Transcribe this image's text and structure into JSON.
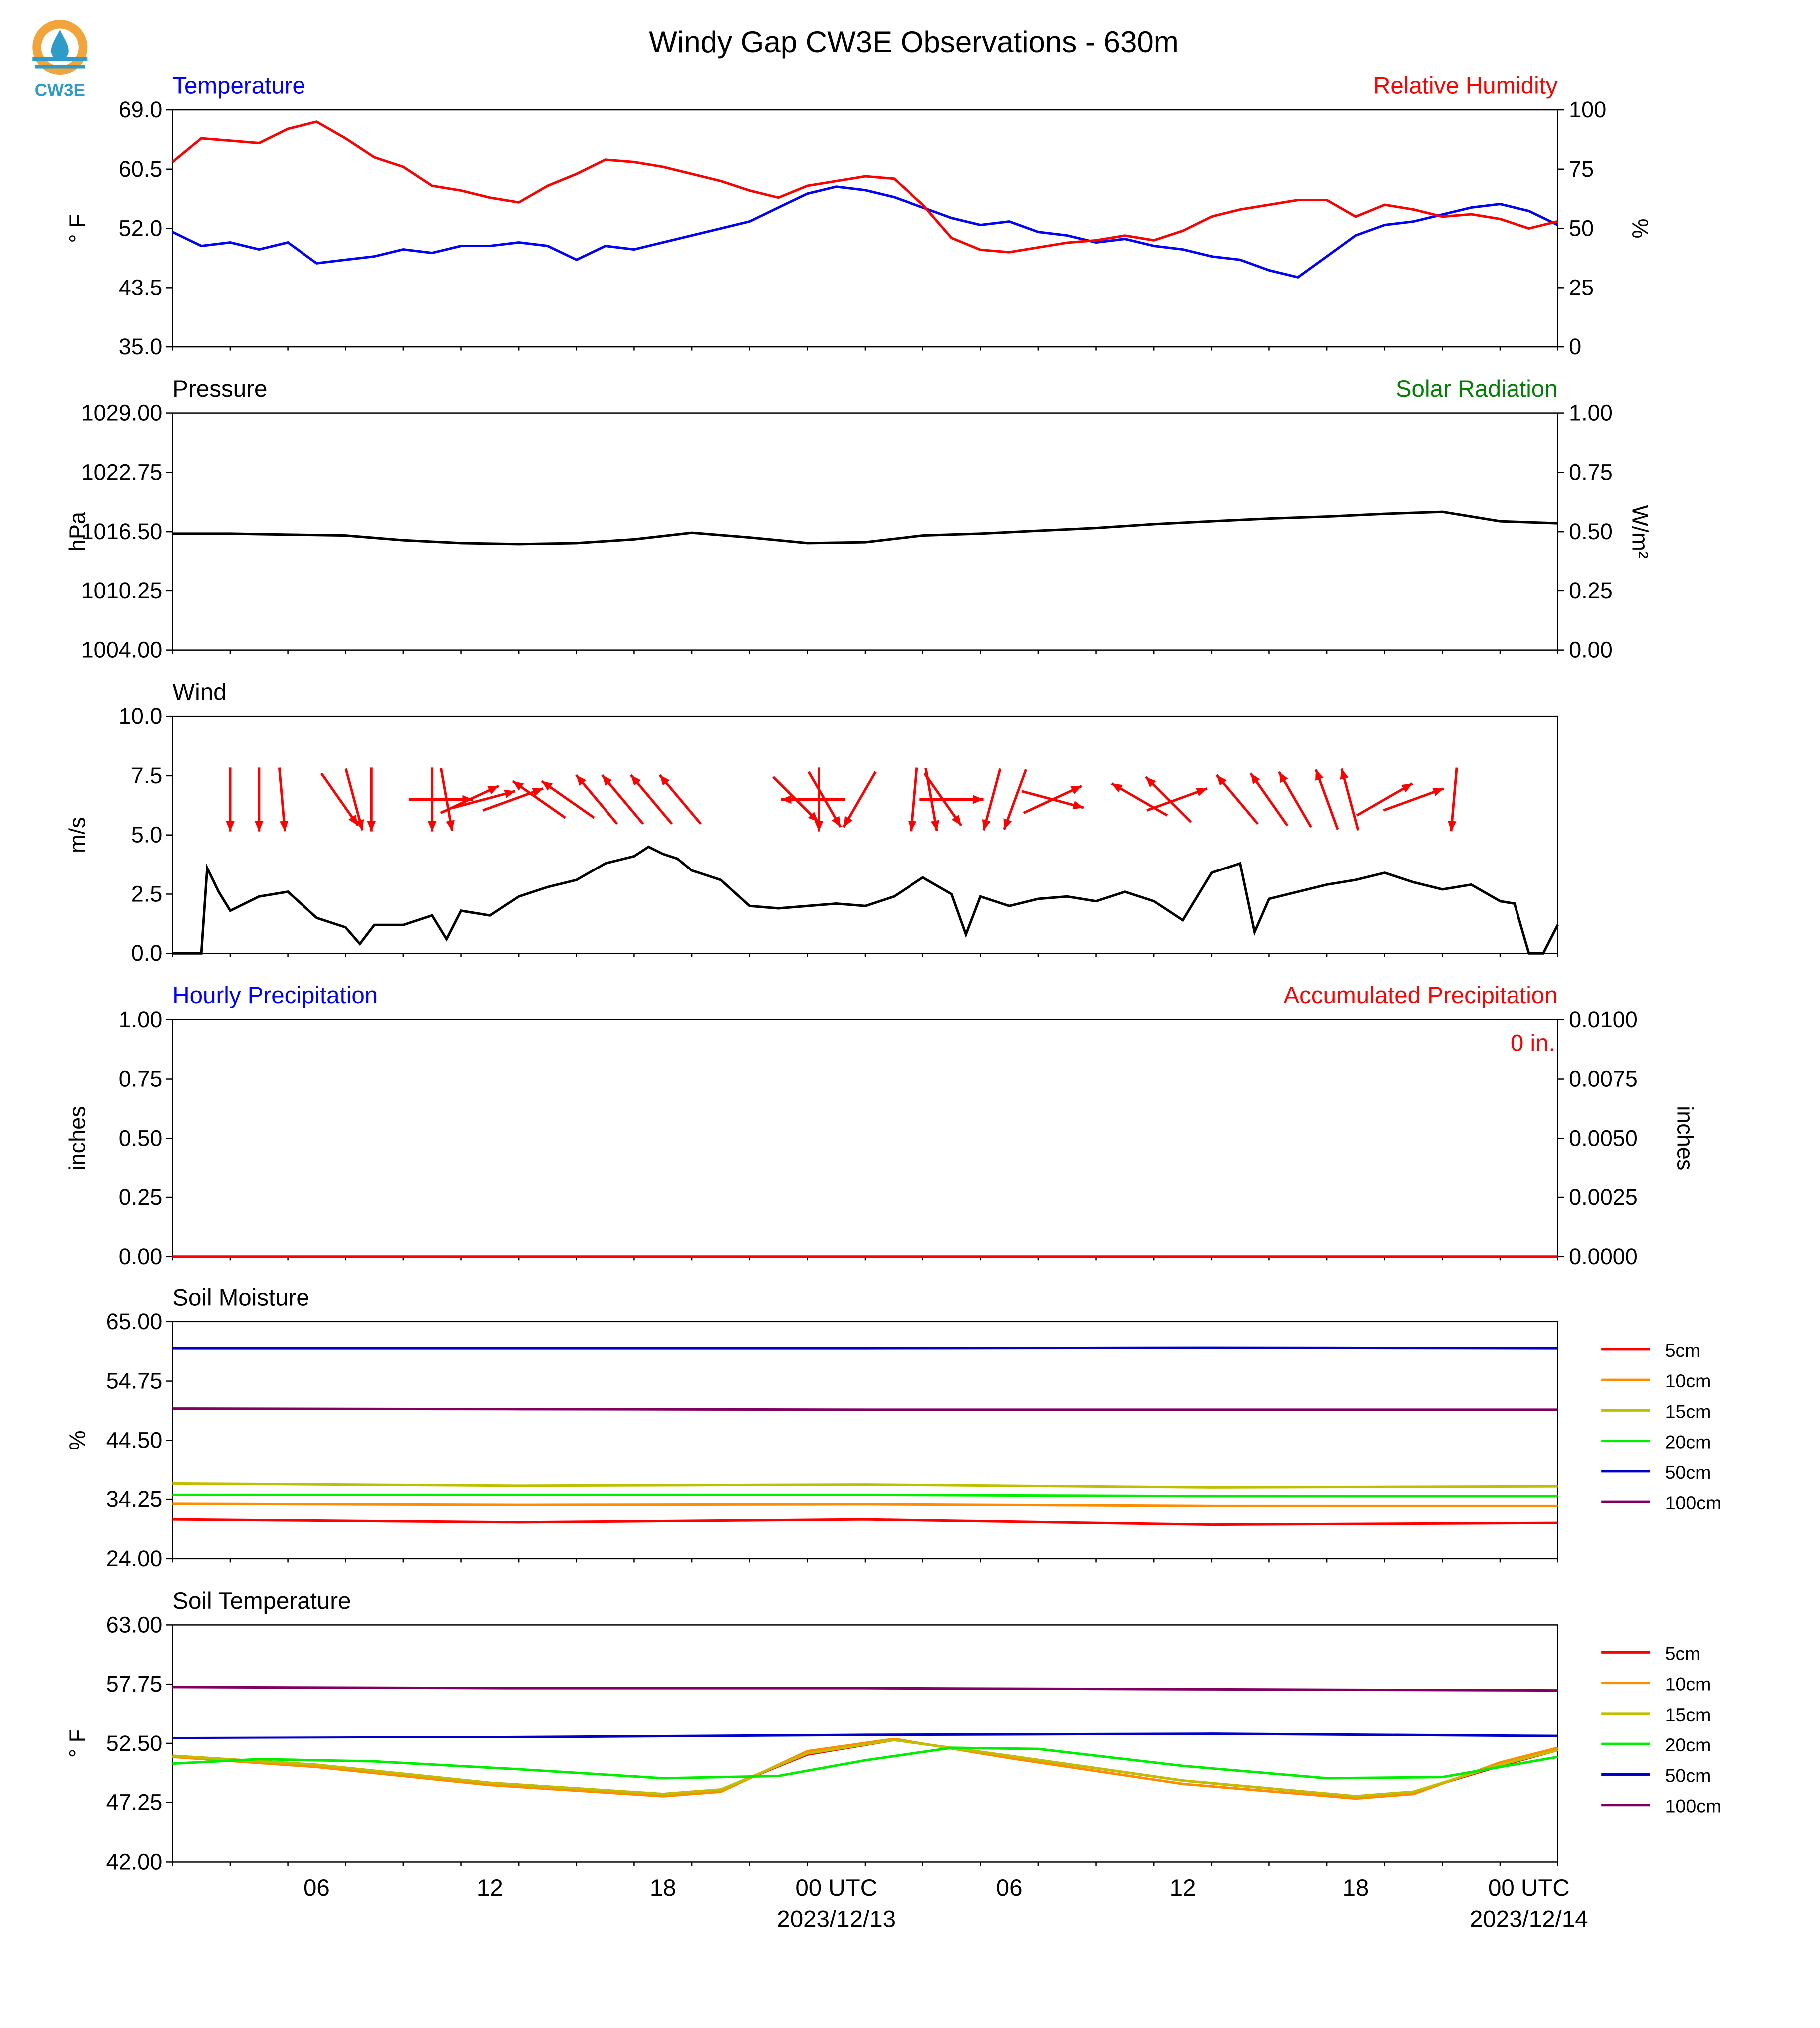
{
  "title": "Windy Gap CW3E Observations - 630m",
  "logo": {
    "text": "CW3E",
    "colors": {
      "ring": "#f2a33a",
      "drop": "#2e9bc9",
      "text": "#2e9bc9"
    }
  },
  "time_axis": {
    "start": "2023-12-12T01:00Z",
    "end": "2023-12-14T01:00Z",
    "tick_labels": [
      {
        "time": "2023-12-12T06:00Z",
        "label": "06"
      },
      {
        "time": "2023-12-12T12:00Z",
        "label": "12"
      },
      {
        "time": "2023-12-12T18:00Z",
        "label": "18"
      },
      {
        "time": "2023-12-13T00:00Z",
        "label": "00 UTC",
        "date": "2023/12/13"
      },
      {
        "time": "2023-12-13T06:00Z",
        "label": "06"
      },
      {
        "time": "2023-12-13T12:00Z",
        "label": "12"
      },
      {
        "time": "2023-12-13T18:00Z",
        "label": "18"
      },
      {
        "time": "2023-12-14T00:00Z",
        "label": "00 UTC",
        "date": "2023/12/14"
      }
    ]
  },
  "chart_data": [
    {
      "type": "line",
      "id": "temperature",
      "left_title": "Temperature",
      "left_title_color": "#0000ff",
      "right_title": "Relative Humidity",
      "right_title_color": "#ff0000",
      "ylabel": "° F",
      "ylim": [
        35.0,
        69.0
      ],
      "yticks": [
        "69.0",
        "60.5",
        "52.0",
        "43.5",
        "35.0"
      ],
      "y2label": "%",
      "y2lim": [
        0,
        100
      ],
      "y2ticks": [
        "100",
        "75",
        "50",
        "25",
        "0"
      ],
      "series": [
        {
          "color": "#0000ff",
          "axis": "left",
          "x": [
            1,
            2,
            3,
            4,
            5,
            6,
            7,
            8,
            9,
            10,
            11,
            12,
            13,
            14,
            15,
            16,
            17,
            18,
            19,
            20,
            21,
            22,
            23,
            24,
            25,
            26,
            27,
            28,
            29,
            30,
            31,
            32,
            33,
            34,
            35,
            36,
            37,
            38,
            39,
            40,
            41,
            42,
            43,
            44,
            45,
            46,
            47,
            48,
            49
          ],
          "y": [
            51.5,
            49.5,
            50.0,
            49.0,
            50.0,
            47.0,
            47.5,
            48.0,
            49.0,
            48.5,
            49.5,
            49.5,
            50.0,
            49.5,
            47.5,
            49.5,
            49.0,
            50.0,
            51.0,
            52.0,
            53.0,
            55.0,
            57.0,
            58.0,
            57.5,
            56.5,
            55.0,
            53.5,
            52.5,
            53.0,
            51.5,
            51.0,
            50.0,
            50.5,
            49.5,
            49.0,
            48.0,
            47.5,
            46.0,
            45.0,
            48.0,
            51.0,
            52.5,
            53.0,
            54.0,
            55.0,
            55.5,
            54.5,
            52.5
          ]
        },
        {
          "color": "#ff0000",
          "axis": "right",
          "x": [
            1,
            2,
            3,
            4,
            5,
            6,
            7,
            8,
            9,
            10,
            11,
            12,
            13,
            14,
            15,
            16,
            17,
            18,
            19,
            20,
            21,
            22,
            23,
            24,
            25,
            26,
            27,
            28,
            29,
            30,
            31,
            32,
            33,
            34,
            35,
            36,
            37,
            38,
            39,
            40,
            41,
            42,
            43,
            44,
            45,
            46,
            47,
            48,
            49
          ],
          "y": [
            78,
            88,
            87,
            86,
            92,
            95,
            88,
            80,
            76,
            68,
            66,
            63,
            61,
            68,
            73,
            79,
            78,
            76,
            73,
            70,
            66,
            63,
            68,
            70,
            72,
            71,
            60,
            46,
            41,
            40,
            42,
            44,
            45,
            47,
            45,
            49,
            55,
            58,
            60,
            62,
            62,
            55,
            60,
            58,
            55,
            56,
            54,
            50,
            53
          ]
        }
      ]
    },
    {
      "type": "line",
      "id": "pressure",
      "left_title": "Pressure",
      "left_title_color": "#000000",
      "right_title": "Solar Radiation",
      "right_title_color": "#008000",
      "ylabel": "hPa",
      "ylim": [
        1004.0,
        1029.0
      ],
      "yticks": [
        "1029.00",
        "1022.75",
        "1016.50",
        "1010.25",
        "1004.00"
      ],
      "y2label": "W/m²",
      "y2lim": [
        0.0,
        1.0
      ],
      "y2ticks": [
        "1.00",
        "0.75",
        "0.50",
        "0.25",
        "0.00"
      ],
      "series": [
        {
          "color": "#000000",
          "axis": "left",
          "x": [
            1,
            3,
            5,
            7,
            9,
            11,
            13,
            15,
            17,
            19,
            21,
            23,
            25,
            27,
            29,
            31,
            33,
            35,
            37,
            39,
            41,
            43,
            45,
            47,
            49
          ],
          "y": [
            1016.3,
            1016.3,
            1016.2,
            1016.1,
            1015.6,
            1015.3,
            1015.2,
            1015.3,
            1015.7,
            1016.4,
            1015.9,
            1015.3,
            1015.4,
            1016.1,
            1016.3,
            1016.6,
            1016.9,
            1017.3,
            1017.6,
            1017.9,
            1018.1,
            1018.4,
            1018.6,
            1017.6,
            1017.4
          ]
        }
      ]
    },
    {
      "type": "line",
      "id": "wind",
      "left_title": "Wind",
      "left_title_color": "#000000",
      "ylabel": "m/s",
      "ylim": [
        0.0,
        10.0
      ],
      "yticks": [
        "10.0",
        "7.5",
        "5.0",
        "2.5",
        "0.0"
      ],
      "series": [
        {
          "color": "#000000",
          "axis": "left",
          "x": [
            1,
            1.9,
            2,
            2.2,
            2.6,
            3,
            4,
            5,
            6,
            7,
            7.5,
            8,
            9,
            10,
            10.5,
            11,
            12,
            13,
            14,
            15,
            16,
            17,
            17.5,
            18,
            18.5,
            19,
            20,
            21,
            22,
            23,
            24,
            25,
            26,
            27,
            28,
            28.5,
            29,
            30,
            31,
            32,
            33,
            34,
            35,
            36,
            37,
            38,
            38.5,
            39,
            40,
            41,
            42,
            43,
            44,
            45,
            46,
            47,
            47.5,
            48,
            48.5,
            49
          ],
          "y": [
            0,
            0,
            0,
            3.6,
            2.6,
            1.8,
            2.4,
            2.6,
            1.5,
            1.1,
            0.4,
            1.2,
            1.2,
            1.6,
            0.6,
            1.8,
            1.6,
            2.4,
            2.8,
            3.1,
            3.8,
            4.1,
            4.5,
            4.2,
            4.0,
            3.5,
            3.1,
            2.0,
            1.9,
            2.0,
            2.1,
            2.0,
            2.4,
            3.2,
            2.5,
            0.8,
            2.4,
            2.0,
            2.3,
            2.4,
            2.2,
            2.6,
            2.2,
            1.4,
            3.4,
            3.8,
            0.9,
            2.3,
            2.6,
            2.9,
            3.1,
            3.4,
            3.0,
            2.7,
            2.9,
            2.2,
            2.1,
            0.0,
            0.0,
            1.2
          ]
        }
      ],
      "arrows": {
        "color": "#ff0000",
        "length_ms": 2.0,
        "items": [
          {
            "t": 3.0,
            "dir": 0
          },
          {
            "t": 4.0,
            "dir": 0
          },
          {
            "t": 4.8,
            "dir": 355
          },
          {
            "t": 6.8,
            "dir": 325
          },
          {
            "t": 7.3,
            "dir": 345
          },
          {
            "t": 7.9,
            "dir": 0
          },
          {
            "t": 10.0,
            "dir": 0
          },
          {
            "t": 10.5,
            "dir": 350
          },
          {
            "t": 10.3,
            "dir": 270
          },
          {
            "t": 11.3,
            "dir": 245
          },
          {
            "t": 11.8,
            "dir": 255
          },
          {
            "t": 12.8,
            "dir": 250
          },
          {
            "t": 13.7,
            "dir": 125
          },
          {
            "t": 14.7,
            "dir": 125
          },
          {
            "t": 15.7,
            "dir": 140
          },
          {
            "t": 16.6,
            "dir": 140
          },
          {
            "t": 17.6,
            "dir": 140
          },
          {
            "t": 18.6,
            "dir": 140
          },
          {
            "t": 22.6,
            "dir": 315
          },
          {
            "t": 23.6,
            "dir": 330
          },
          {
            "t": 23.4,
            "dir": 0
          },
          {
            "t": 23.2,
            "dir": 90
          },
          {
            "t": 24.8,
            "dir": 30
          },
          {
            "t": 26.7,
            "dir": 5
          },
          {
            "t": 27.3,
            "dir": 350
          },
          {
            "t": 27.7,
            "dir": 325
          },
          {
            "t": 28.0,
            "dir": 270
          },
          {
            "t": 29.4,
            "dir": 15
          },
          {
            "t": 30.2,
            "dir": 20
          },
          {
            "t": 31.5,
            "dir": 285
          },
          {
            "t": 31.5,
            "dir": 245
          },
          {
            "t": 34.5,
            "dir": 120
          },
          {
            "t": 35.5,
            "dir": 135
          },
          {
            "t": 35.8,
            "dir": 250
          },
          {
            "t": 37.9,
            "dir": 140
          },
          {
            "t": 39.0,
            "dir": 145
          },
          {
            "t": 39.9,
            "dir": 150
          },
          {
            "t": 41.0,
            "dir": 160
          },
          {
            "t": 41.8,
            "dir": 165
          },
          {
            "t": 43.0,
            "dir": 240
          },
          {
            "t": 44.0,
            "dir": 250
          },
          {
            "t": 45.4,
            "dir": 5
          }
        ]
      }
    },
    {
      "type": "line",
      "id": "precipitation",
      "left_title": "Hourly Precipitation",
      "left_title_color": "#0000ff",
      "right_title": "Accumulated Precipitation",
      "right_title_color": "#ff0000",
      "annotation": "0 in.",
      "annotation_color": "#ff0000",
      "ylabel": "inches",
      "ylim": [
        0.0,
        1.0
      ],
      "yticks": [
        "1.00",
        "0.75",
        "0.50",
        "0.25",
        "0.00"
      ],
      "y2label": "inches",
      "y2lim": [
        0.0,
        0.01
      ],
      "y2ticks": [
        "0.0100",
        "0.0075",
        "0.0050",
        "0.0025",
        "0.0000"
      ],
      "series": [
        {
          "color": "#ff0000",
          "axis": "right",
          "x": [
            1,
            49
          ],
          "y": [
            0,
            0
          ]
        }
      ]
    },
    {
      "type": "line",
      "id": "soil_moisture",
      "left_title": "Soil Moisture",
      "left_title_color": "#000000",
      "ylabel": "%",
      "ylim": [
        24.0,
        65.0
      ],
      "yticks": [
        "65.00",
        "54.75",
        "44.50",
        "34.25",
        "24.00"
      ],
      "series": [
        {
          "name": "5cm",
          "color": "#ff0000",
          "x": [
            1,
            13,
            25,
            37,
            49
          ],
          "y": [
            30.8,
            30.3,
            30.8,
            29.9,
            30.2
          ]
        },
        {
          "name": "10cm",
          "color": "#ff8c00",
          "x": [
            1,
            13,
            25,
            37,
            49
          ],
          "y": [
            33.5,
            33.3,
            33.4,
            33.1,
            33.1
          ]
        },
        {
          "name": "15cm",
          "color": "#bfbf00",
          "x": [
            1,
            13,
            25,
            37,
            49
          ],
          "y": [
            37.0,
            36.6,
            36.8,
            36.3,
            36.5
          ]
        },
        {
          "name": "20cm",
          "color": "#00ee00",
          "x": [
            1,
            13,
            25,
            37,
            49
          ],
          "y": [
            35.0,
            35.0,
            35.0,
            34.8,
            34.8
          ]
        },
        {
          "name": "50cm",
          "color": "#0000cc",
          "x": [
            1,
            13,
            25,
            37,
            49
          ],
          "y": [
            60.4,
            60.4,
            60.4,
            60.5,
            60.4
          ]
        },
        {
          "name": "100cm",
          "color": "#800060",
          "x": [
            1,
            13,
            25,
            37,
            49
          ],
          "y": [
            50.0,
            49.9,
            49.8,
            49.8,
            49.8
          ]
        }
      ]
    },
    {
      "type": "line",
      "id": "soil_temperature",
      "left_title": "Soil Temperature",
      "left_title_color": "#000000",
      "ylabel": "° F",
      "ylim": [
        42.0,
        63.0
      ],
      "yticks": [
        "63.00",
        "57.75",
        "52.50",
        "47.25",
        "42.00"
      ],
      "series": [
        {
          "name": "5cm",
          "color": "#ff0000",
          "x": [
            1,
            6,
            12,
            18,
            20,
            23,
            26,
            30,
            36,
            42,
            44,
            47,
            49
          ],
          "y": [
            51.4,
            50.6,
            49.0,
            48.0,
            48.4,
            51.5,
            52.8,
            51.4,
            49.2,
            47.8,
            48.2,
            50.5,
            51.9
          ]
        },
        {
          "name": "10cm",
          "color": "#ff8c00",
          "x": [
            1,
            6,
            12,
            18,
            20,
            23,
            26,
            30,
            36,
            42,
            44,
            47,
            49
          ],
          "y": [
            51.3,
            50.4,
            48.8,
            47.8,
            48.2,
            51.8,
            52.9,
            51.2,
            48.9,
            47.6,
            48.0,
            50.8,
            52.1
          ]
        },
        {
          "name": "15cm",
          "color": "#bfbf00",
          "x": [
            1,
            6,
            12,
            18,
            20,
            23,
            26,
            30,
            36,
            42,
            44,
            47,
            49
          ],
          "y": [
            51.4,
            50.6,
            49.0,
            48.0,
            48.4,
            51.6,
            52.8,
            51.4,
            49.2,
            47.8,
            48.2,
            50.6,
            51.9
          ]
        },
        {
          "name": "20cm",
          "color": "#00ee00",
          "x": [
            1,
            4,
            8,
            13,
            18,
            22,
            25,
            28,
            31,
            36,
            41,
            45,
            49
          ],
          "y": [
            50.7,
            51.1,
            50.9,
            50.2,
            49.4,
            49.6,
            51.0,
            52.1,
            52.0,
            50.5,
            49.4,
            49.5,
            51.3
          ]
        },
        {
          "name": "50cm",
          "color": "#0000cc",
          "x": [
            1,
            13,
            25,
            37,
            49
          ],
          "y": [
            53.0,
            53.1,
            53.3,
            53.4,
            53.2
          ]
        },
        {
          "name": "100cm",
          "color": "#800060",
          "x": [
            1,
            13,
            25,
            37,
            49
          ],
          "y": [
            57.5,
            57.4,
            57.4,
            57.3,
            57.2
          ]
        }
      ]
    }
  ]
}
